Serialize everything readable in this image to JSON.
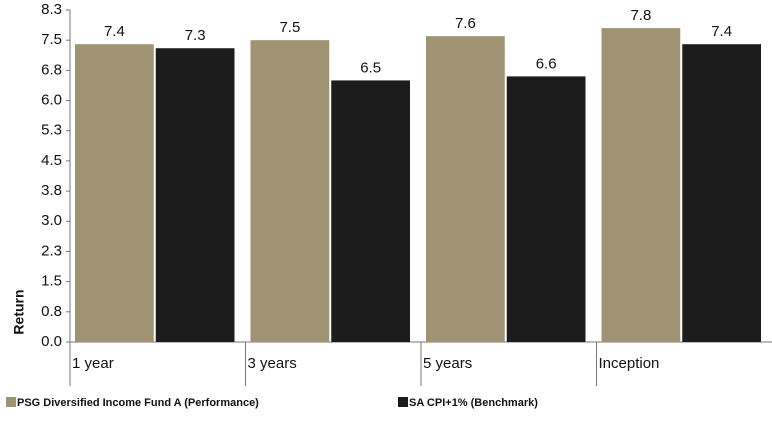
{
  "chart_data": {
    "type": "bar",
    "y_label": "Return",
    "categories": [
      "1 year",
      "3 years",
      "5 years",
      "Inception"
    ],
    "series": [
      {
        "name": "PSG Diversified Income Fund A (Performance)",
        "color": "#a09373",
        "values": [
          7.4,
          7.5,
          7.6,
          7.8
        ]
      },
      {
        "name": "SA CPI+1% (Benchmark)",
        "color": "#1c1c1c",
        "values": [
          7.3,
          6.5,
          6.6,
          7.4
        ]
      }
    ],
    "ylim": [
      0,
      8.25
    ],
    "yticks": [
      {
        "value": 0,
        "label": "0.0"
      },
      {
        "value": 0.75,
        "label": "0.8"
      },
      {
        "value": 1.5,
        "label": "1.5"
      },
      {
        "value": 2.25,
        "label": "2.3"
      },
      {
        "value": 3,
        "label": "3.0"
      },
      {
        "value": 3.75,
        "label": "3.8"
      },
      {
        "value": 4.5,
        "label": "4.5"
      },
      {
        "value": 5.25,
        "label": "5.3"
      },
      {
        "value": 6,
        "label": "6.0"
      },
      {
        "value": 6.75,
        "label": "6.8"
      },
      {
        "value": 7.5,
        "label": "7.5"
      },
      {
        "value": 8.25,
        "label": "8.3"
      }
    ],
    "grid": false
  }
}
